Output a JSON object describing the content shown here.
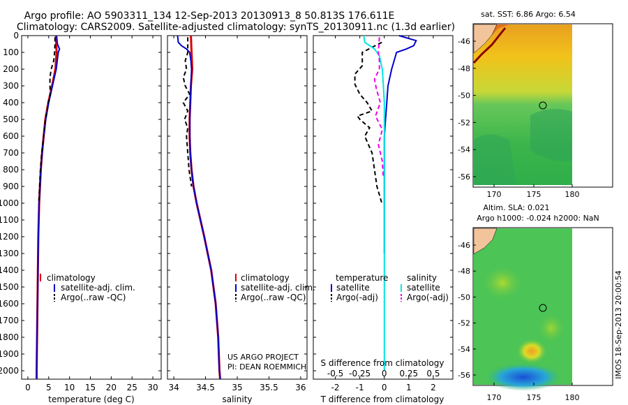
{
  "header": {
    "title_line1": "Argo profile: AO 5903311_134 12-Sep-2013 20130913_8 50.813S 176.611E",
    "title_line2": "Climatology: CARS2009. Satellite-adjusted climatology: synTS_20130911.nc (1.3d earlier)"
  },
  "depth_ticks": [
    "0",
    "100",
    "200",
    "300",
    "400",
    "500",
    "600",
    "700",
    "800",
    "900",
    "1000",
    "1100",
    "1200",
    "1300",
    "1400",
    "1500",
    "1600",
    "1700",
    "1800",
    "1900",
    "2000"
  ],
  "colors": {
    "climatology": "#dd0000",
    "satellite": "#0000cc",
    "argo": "#000000",
    "salinity_sat": "#00e5e5",
    "salinity_argo": "#ee00ee"
  },
  "panel_temperature": {
    "xlabel": "temperature (deg C)",
    "xticks": [
      "0",
      "5",
      "10",
      "15",
      "20",
      "25",
      "30"
    ],
    "xlim": [
      -1.5,
      32
    ],
    "legend": [
      "climatology",
      "satellite-adj. clim.",
      "Argo(..raw -QC)"
    ]
  },
  "panel_salinity": {
    "xlabel": "salinity",
    "xticks": [
      "34",
      "34.5",
      "35",
      "35.5",
      "36"
    ],
    "xlim": [
      33.9,
      36.1
    ],
    "legend": [
      "climatology",
      "satellite-adj. clim.",
      "Argo(..raw -QC)"
    ],
    "credit_line1": "US ARGO PROJECT",
    "credit_line2": "PI: DEAN ROEMMICH"
  },
  "panel_difference": {
    "xlabel": "T difference from climatology",
    "top_label": "S difference from climatology",
    "t_ticks": [
      "-2",
      "-1",
      "0",
      "1",
      "2"
    ],
    "s_ticks": [
      "-0.5",
      "-0.25",
      "0",
      "0.25",
      "0.5"
    ],
    "t_lim": [
      -2.9,
      2.8
    ],
    "legend_temperature_title": "temperature",
    "legend_salinity_title": "salinity",
    "legend_temperature": [
      "satellite",
      "Argo(-adj)"
    ],
    "legend_salinity": [
      "satellite",
      "Argo(-adj)"
    ]
  },
  "map_sst": {
    "title": "sat. SST: 6.86  Argo: 6.54",
    "xticks": [
      "170",
      "175",
      "180"
    ],
    "yticks": [
      "-46",
      "-48",
      "-50",
      "-52",
      "-54",
      "-56"
    ]
  },
  "map_sla": {
    "title_line1": "Altim. SLA: 0.021",
    "title_line2": "Argo h1000: -0.024 h2000: NaN",
    "xticks": [
      "170",
      "175",
      "180"
    ],
    "yticks": [
      "-46",
      "-48",
      "-50",
      "-52",
      "-54",
      "-56"
    ]
  },
  "footer_vertical": "IMOS 18-Sep-2013 20:00:54",
  "chart_data": [
    {
      "type": "line",
      "title": "temperature",
      "xlabel": "temperature (deg C)",
      "ylabel": "",
      "ylim": [
        2050,
        0
      ],
      "series": [
        {
          "name": "climatology",
          "depth": [
            0,
            50,
            100,
            200,
            300,
            400,
            500,
            600,
            700,
            800,
            900,
            1000,
            1200,
            1400,
            1600,
            1800,
            2000,
            2050
          ],
          "values": [
            6.7,
            6.8,
            6.9,
            6.6,
            5.8,
            4.9,
            4.2,
            3.8,
            3.4,
            3.1,
            2.9,
            2.7,
            2.5,
            2.4,
            2.3,
            2.2,
            2.1,
            2.1
          ]
        },
        {
          "name": "satellite-adj. clim.",
          "depth": [
            0,
            50,
            80,
            100,
            200,
            300,
            400,
            500,
            600,
            700,
            800,
            900,
            1000,
            1200,
            1400,
            1600,
            1800,
            2000,
            2050
          ],
          "values": [
            6.9,
            7.1,
            7.6,
            7.3,
            6.8,
            5.9,
            5.0,
            4.3,
            3.8,
            3.4,
            3.1,
            2.9,
            2.7,
            2.5,
            2.4,
            2.3,
            2.2,
            2.1,
            2.1
          ]
        },
        {
          "name": "Argo(..raw -QC)",
          "depth": [
            10,
            50,
            100,
            150,
            200,
            250,
            300,
            350,
            400,
            450,
            500,
            600,
            700,
            800,
            900,
            1000
          ],
          "values": [
            6.5,
            6.5,
            6.4,
            6.2,
            5.6,
            5.3,
            5.3,
            5.4,
            4.9,
            4.6,
            4.2,
            3.8,
            3.3,
            3.0,
            2.8,
            2.6
          ]
        }
      ]
    },
    {
      "type": "line",
      "title": "salinity",
      "xlabel": "salinity",
      "ylabel": "",
      "ylim": [
        2050,
        0
      ],
      "series": [
        {
          "name": "climatology",
          "depth": [
            0,
            100,
            200,
            300,
            400,
            500,
            600,
            700,
            800,
            900,
            1000,
            1200,
            1400,
            1600,
            1800,
            2000,
            2050
          ],
          "values": [
            34.27,
            34.28,
            34.29,
            34.27,
            34.26,
            34.25,
            34.25,
            34.26,
            34.28,
            34.31,
            34.36,
            34.48,
            34.59,
            34.66,
            34.7,
            34.72,
            34.73
          ]
        },
        {
          "name": "satellite-adj. clim.",
          "depth": [
            0,
            40,
            60,
            80,
            100,
            150,
            200,
            300,
            400,
            500,
            600,
            700,
            800,
            900,
            1000,
            1200,
            1400,
            1600,
            1800,
            2000,
            2050
          ],
          "values": [
            34.06,
            34.07,
            34.12,
            34.2,
            34.25,
            34.27,
            34.28,
            34.27,
            34.26,
            34.25,
            34.25,
            34.26,
            34.28,
            34.31,
            34.36,
            34.48,
            34.59,
            34.66,
            34.7,
            34.72,
            34.73
          ]
        },
        {
          "name": "Argo(..raw -QC)",
          "depth": [
            10,
            100,
            150,
            200,
            250,
            300,
            350,
            400,
            450,
            500,
            550,
            600,
            700,
            800,
            900
          ],
          "values": [
            34.22,
            34.22,
            34.18,
            34.2,
            34.15,
            34.18,
            34.25,
            34.15,
            34.22,
            34.17,
            34.22,
            34.2,
            34.22,
            34.24,
            34.28
          ]
        }
      ]
    },
    {
      "type": "line",
      "title": "difference from climatology",
      "xlabel": "T difference from climatology",
      "ylabel": "",
      "ylim": [
        2050,
        0
      ],
      "series": [
        {
          "name": "temperature satellite",
          "depth": [
            0,
            30,
            60,
            80,
            100,
            150,
            200,
            300,
            400,
            500,
            600,
            800,
            1000,
            1200,
            1300
          ],
          "values": [
            0.6,
            1.3,
            1.2,
            0.9,
            0.5,
            0.4,
            0.3,
            0.15,
            0.1,
            0.05,
            0.0,
            0.0,
            0.0,
            0.0,
            0.0
          ]
        },
        {
          "name": "temperature Argo(-adj)",
          "depth": [
            40,
            100,
            180,
            230,
            290,
            350,
            400,
            450,
            480,
            500,
            550,
            600,
            700,
            800,
            900,
            1000
          ],
          "values": [
            -0.1,
            -0.9,
            -0.9,
            -1.2,
            -1.2,
            -1.0,
            -0.7,
            -0.5,
            -1.1,
            -1.0,
            -0.6,
            -0.8,
            -0.5,
            -0.4,
            -0.3,
            -0.1
          ]
        },
        {
          "name": "salinity satellite",
          "depth": [
            0,
            40,
            80,
            120,
            200,
            300,
            400,
            600,
            800,
            1000,
            1200,
            1400,
            1600,
            1800,
            2000
          ],
          "values": [
            -0.21,
            -0.2,
            -0.1,
            -0.05,
            -0.02,
            -0.01,
            0.0,
            0.0,
            0.0,
            0.0,
            0.0,
            0.0,
            0.0,
            0.0,
            0.0
          ]
        },
        {
          "name": "salinity Argo(-adj)",
          "depth": [
            10,
            100,
            150,
            200,
            260,
            320,
            400,
            480,
            560,
            650,
            750,
            850
          ],
          "values": [
            -0.05,
            -0.06,
            -0.05,
            -0.05,
            -0.1,
            -0.08,
            -0.04,
            -0.09,
            -0.02,
            -0.06,
            -0.02,
            -0.01
          ]
        }
      ]
    }
  ]
}
